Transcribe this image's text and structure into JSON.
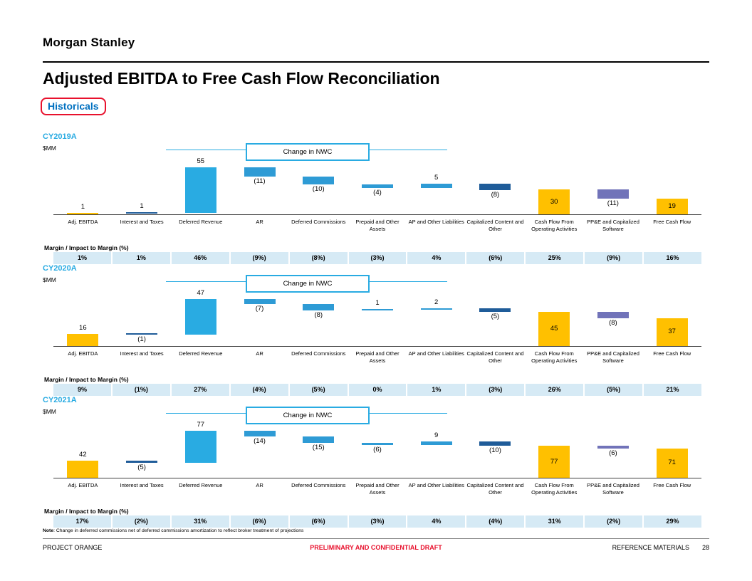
{
  "header": {
    "logo": "Morgan Stanley",
    "title": "Adjusted EBITDA to Free Cash Flow Reconciliation",
    "tag": "Historicals"
  },
  "labels": {
    "nwc": "Change in NWC",
    "margin_row": "Margin / Impact to Margin (%)",
    "units": "$MM"
  },
  "colors": {
    "accent_cyan": "#29ABE2",
    "bar_yellow": "#FFC000",
    "bar_cyan": "#29ABE2",
    "bar_blue": "#2E9BD5",
    "bar_navy": "#1F5C99",
    "bar_purple": "#7173B9",
    "margin_cell_bg": "#D6EAF5",
    "tag_border_red": "#E8112D",
    "tag_text_blue": "#0070C0",
    "draft_red": "#E8112D"
  },
  "bar_colors": [
    "#FFC000",
    "#1F5C99",
    "#29ABE2",
    "#2E9BD5",
    "#2E9BD5",
    "#2E9BD5",
    "#2E9BD5",
    "#1F5C99",
    "#FFC000",
    "#7173B9",
    "#FFC000"
  ],
  "chart_data": [
    {
      "type": "bar",
      "subtype": "waterfall",
      "title": "CY2019A",
      "ylabel": "$MM",
      "annotation": "Change in NWC",
      "grid": false,
      "ylim": [
        0,
        57
      ],
      "categories": [
        "Adj. EBITDA",
        "Interest and Taxes",
        "Deferred Revenue",
        "AR",
        "Deferred Commissions",
        "Prepaid and Other Assets",
        "AP and Other Liabilities",
        "Capitalized Content and Other",
        "Cash Flow From Operating Activities",
        "PP&E and Capitalized Software",
        "Free Cash Flow"
      ],
      "values": [
        1,
        1,
        55,
        -11,
        -10,
        -4,
        5,
        -8,
        30,
        -11,
        19
      ],
      "value_labels": [
        "1",
        "1",
        "55",
        "(11)",
        "(10)",
        "(4)",
        "5",
        "(8)",
        "30",
        "(11)",
        "19"
      ],
      "bar_kinds": [
        "rel",
        "rel",
        "rel",
        "rel",
        "rel",
        "rel",
        "rel",
        "rel",
        "total",
        "rel",
        "total"
      ],
      "margins": [
        "1%",
        "1%",
        "46%",
        "(9%)",
        "(8%)",
        "(3%)",
        "4%",
        "(6%)",
        "25%",
        "(9%)",
        "16%"
      ]
    },
    {
      "type": "bar",
      "subtype": "waterfall",
      "title": "CY2020A",
      "ylabel": "$MM",
      "annotation": "Change in NWC",
      "grid": false,
      "ylim": [
        0,
        62
      ],
      "categories": [
        "Adj. EBITDA",
        "Interest and Taxes",
        "Deferred Revenue",
        "AR",
        "Deferred Commissions",
        "Prepaid and Other Assets",
        "AP and Other Liabilities",
        "Capitalized Content and Other",
        "Cash Flow From Operating Activities",
        "PP&E and Capitalized Software",
        "Free Cash Flow"
      ],
      "values": [
        16,
        -1,
        47,
        -7,
        -8,
        1,
        2,
        -5,
        45,
        -8,
        37
      ],
      "value_labels": [
        "16",
        "(1)",
        "47",
        "(7)",
        "(8)",
        "1",
        "2",
        "(5)",
        "45",
        "(8)",
        "37"
      ],
      "bar_kinds": [
        "rel",
        "rel",
        "rel",
        "rel",
        "rel",
        "rel",
        "rel",
        "rel",
        "total",
        "rel",
        "total"
      ],
      "margins": [
        "9%",
        "(1%)",
        "27%",
        "(4%)",
        "(5%)",
        "0%",
        "1%",
        "(3%)",
        "26%",
        "(5%)",
        "21%"
      ]
    },
    {
      "type": "bar",
      "subtype": "waterfall",
      "title": "CY2021A",
      "ylabel": "$MM",
      "annotation": "Change in NWC",
      "grid": false,
      "ylim": [
        0,
        114
      ],
      "categories": [
        "Adj. EBITDA",
        "Interest and Taxes",
        "Deferred Revenue",
        "AR",
        "Deferred Commissions",
        "Prepaid and Other Assets",
        "AP and Other Liabilities",
        "Capitalized Content and Other",
        "Cash Flow From Operating Activities",
        "PP&E and Capitalized Software",
        "Free Cash Flow"
      ],
      "values": [
        42,
        -5,
        77,
        -14,
        -15,
        -6,
        9,
        -10,
        77,
        -6,
        71
      ],
      "value_labels": [
        "42",
        "(5)",
        "77",
        "(14)",
        "(15)",
        "(6)",
        "9",
        "(10)",
        "77",
        "(6)",
        "71"
      ],
      "bar_kinds": [
        "rel",
        "rel",
        "rel",
        "rel",
        "rel",
        "rel",
        "rel",
        "rel",
        "total",
        "rel",
        "total"
      ],
      "margins": [
        "17%",
        "(2%)",
        "31%",
        "(6%)",
        "(6%)",
        "(3%)",
        "4%",
        "(4%)",
        "31%",
        "(2%)",
        "29%"
      ]
    }
  ],
  "note": {
    "label": "Note",
    "text": ": Change in deferred commissions net of deferred commissions amortization to reflect broker treatment of projections"
  },
  "footer": {
    "left": "PROJECT ORANGE",
    "center": "PRELIMINARY AND CONFIDENTIAL DRAFT",
    "right": "REFERENCE MATERIALS",
    "page_number": "28"
  }
}
